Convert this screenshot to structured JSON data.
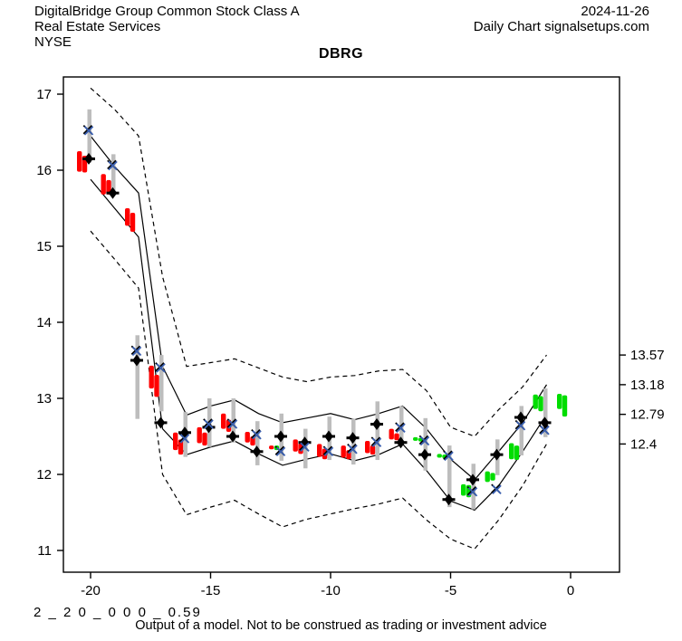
{
  "header": {
    "company": "DigitalBridge Group Common Stock Class A",
    "date": "2024-11-26",
    "sector": "Real Estate Services",
    "chart_kind": "Daily Chart signalsetups.com",
    "exchange": "NYSE"
  },
  "title": "DBRG",
  "footer": {
    "model_code": "2 _ 2 0 _ 0 0 0 _ 0.59",
    "disclaimer": "Output of a model. Not to be construed as trading or investment advice"
  },
  "chart_data": {
    "type": "candlestick-forecast",
    "title": "DBRG",
    "xlabel": "",
    "ylabel": "",
    "xlim": [
      -21.3,
      2
    ],
    "ylim": [
      10.77,
      17.23
    ],
    "x_ticks": [
      -20,
      -15,
      -10,
      -5,
      0
    ],
    "y_ticks": [
      11,
      12,
      13,
      14,
      15,
      16,
      17
    ],
    "right_axis_labels": [
      {
        "value": 13.57,
        "label": "13.57"
      },
      {
        "value": 13.18,
        "label": "13.18"
      },
      {
        "value": 12.79,
        "label": "12.79"
      },
      {
        "value": 12.4,
        "label": "12.4"
      }
    ],
    "grid": false,
    "colors": {
      "up": "#00dd00",
      "down": "#ff0000",
      "range_bar": "#bdbdbd",
      "x_marker_blue": "#3a5fb0",
      "marker_black": "#000000",
      "line": "#000000",
      "text": "#000000"
    },
    "band_days": [
      -20,
      -19,
      -18,
      -17,
      -16,
      -15,
      -14,
      -13,
      -12,
      -11,
      -10,
      -9,
      -8,
      -7,
      -6,
      -5,
      -4,
      -3,
      -2,
      -1
    ],
    "bands": {
      "upper_dashed": [
        17.08,
        16.8,
        16.45,
        14.6,
        13.42,
        13.47,
        13.52,
        13.4,
        13.28,
        13.22,
        13.28,
        13.3,
        13.36,
        13.38,
        13.1,
        12.62,
        12.5,
        12.85,
        13.15,
        13.57
      ],
      "upper_solid": [
        16.45,
        16.05,
        15.7,
        13.42,
        12.78,
        12.9,
        12.98,
        12.8,
        12.68,
        12.74,
        12.8,
        12.72,
        12.8,
        12.9,
        12.6,
        12.2,
        11.93,
        12.3,
        12.68,
        13.18
      ],
      "lower_solid": [
        15.88,
        15.5,
        15.12,
        12.6,
        12.26,
        12.36,
        12.44,
        12.27,
        12.12,
        12.2,
        12.27,
        12.18,
        12.26,
        12.4,
        12.05,
        11.65,
        11.53,
        11.85,
        12.3,
        12.79
      ],
      "lower_dashed": [
        15.2,
        14.83,
        14.45,
        12.0,
        11.47,
        11.57,
        11.66,
        11.48,
        11.31,
        11.41,
        11.48,
        11.55,
        11.61,
        11.69,
        11.4,
        11.15,
        11.02,
        11.4,
        11.85,
        12.4
      ]
    },
    "days": [
      {
        "d": -20,
        "boxes": [
          [
            16.25,
            15.98,
            "down"
          ],
          [
            16.19,
            15.97,
            "down"
          ]
        ],
        "range": [
          16.8,
          16.1
        ],
        "x": 16.52,
        "diamond": 16.15
      },
      {
        "d": -19,
        "boxes": [
          [
            15.95,
            15.68,
            "down"
          ],
          [
            15.87,
            15.68,
            "down"
          ]
        ],
        "range": [
          16.21,
          15.7
        ],
        "x": 16.06,
        "diamond": 15.7
      },
      {
        "d": -18,
        "boxes": [
          [
            15.5,
            15.27,
            "down"
          ],
          [
            15.44,
            15.19,
            "down"
          ]
        ],
        "range": [
          13.83,
          12.73
        ],
        "x": 13.62,
        "diamond": 13.5
      },
      {
        "d": -17,
        "boxes": [
          [
            13.43,
            13.13,
            "down"
          ],
          [
            13.31,
            13.02,
            "down"
          ]
        ],
        "range": [
          13.57,
          12.83
        ],
        "x": 13.4,
        "diamond": 12.68
      },
      {
        "d": -16,
        "boxes": [
          [
            12.55,
            12.32,
            "down"
          ],
          [
            12.46,
            12.26,
            "down"
          ]
        ],
        "range": [
          12.82,
          12.23
        ],
        "x": 12.47,
        "diamond": 12.55
      },
      {
        "d": -15,
        "boxes": [
          [
            12.62,
            12.41,
            "down"
          ],
          [
            12.55,
            12.38,
            "down"
          ]
        ],
        "range": [
          13.0,
          12.36
        ],
        "x": 12.66,
        "diamond": 12.62
      },
      {
        "d": -14,
        "boxes": [
          [
            12.8,
            12.6,
            "down"
          ],
          [
            12.72,
            12.56,
            "down"
          ]
        ],
        "range": [
          13.0,
          12.42
        ],
        "x": 12.66,
        "diamond": 12.5
      },
      {
        "d": -13,
        "boxes": [
          [
            12.56,
            12.42,
            "down"
          ],
          [
            12.5,
            12.38,
            "down"
          ]
        ],
        "range": [
          12.7,
          12.12
        ],
        "x": 12.52,
        "diamond": 12.3
      },
      {
        "d": -12,
        "boxes": [
          [
            12.38,
            12.33,
            "down"
          ],
          [
            12.38,
            12.32,
            "up"
          ]
        ],
        "range": [
          12.8,
          12.18
        ],
        "x": 12.3,
        "diamond": 12.5
      },
      {
        "d": -11,
        "boxes": [
          [
            12.46,
            12.3,
            "down"
          ],
          [
            12.41,
            12.27,
            "down"
          ]
        ],
        "range": [
          12.6,
          12.08
        ],
        "x": 12.36,
        "diamond": 12.42
      },
      {
        "d": -10,
        "boxes": [
          [
            12.4,
            12.23,
            "down"
          ],
          [
            12.34,
            12.2,
            "down"
          ]
        ],
        "range": [
          12.76,
          12.19
        ],
        "x": 12.3,
        "diamond": 12.5
      },
      {
        "d": -9,
        "boxes": [
          [
            12.38,
            12.22,
            "down"
          ],
          [
            12.32,
            12.2,
            "down"
          ]
        ],
        "range": [
          12.73,
          12.13
        ],
        "x": 12.33,
        "diamond": 12.48
      },
      {
        "d": -8,
        "boxes": [
          [
            12.44,
            12.28,
            "down"
          ],
          [
            12.38,
            12.26,
            "down"
          ]
        ],
        "range": [
          12.96,
          12.19
        ],
        "x": 12.42,
        "diamond": 12.66
      },
      {
        "d": -7,
        "boxes": [
          [
            12.6,
            12.46,
            "down"
          ],
          [
            12.54,
            12.45,
            "down"
          ]
        ],
        "range": [
          12.9,
          12.46
        ],
        "x": 12.61,
        "diamond": 12.42
      },
      {
        "d": -6,
        "boxes": [
          [
            12.49,
            12.45,
            "up"
          ],
          [
            12.48,
            12.44,
            "up"
          ]
        ],
        "range": [
          12.74,
          12.05
        ],
        "x": 12.44,
        "diamond": 12.26
      },
      {
        "d": -5,
        "boxes": [
          [
            12.27,
            12.22,
            "up"
          ],
          [
            12.26,
            12.21,
            "up"
          ]
        ],
        "range": [
          12.38,
          11.57
        ],
        "x": 12.24,
        "diamond": 11.67
      },
      {
        "d": -4,
        "boxes": [
          [
            11.87,
            11.72,
            "up"
          ],
          [
            11.86,
            11.7,
            "up"
          ]
        ],
        "range": [
          12.14,
          11.54
        ],
        "x": 11.77,
        "diamond": 11.93
      },
      {
        "d": -3,
        "boxes": [
          [
            12.04,
            11.9,
            "up"
          ],
          [
            12.02,
            11.92,
            "up"
          ]
        ],
        "range": [
          12.46,
          11.99
        ],
        "x": 11.8,
        "diamond": 12.26
      },
      {
        "d": -2,
        "boxes": [
          [
            12.41,
            12.2,
            "up"
          ],
          [
            12.38,
            12.19,
            "up"
          ]
        ],
        "range": [
          12.9,
          12.25
        ],
        "x": 12.64,
        "diamond": 12.75
      },
      {
        "d": -1,
        "boxes": [
          [
            13.05,
            12.86,
            "up"
          ],
          [
            13.03,
            12.83,
            "up"
          ]
        ],
        "range": [
          13.13,
          12.49
        ],
        "x": 12.58,
        "diamond": 12.68
      },
      {
        "d": 0,
        "boxes": [
          [
            13.06,
            12.86,
            "up"
          ],
          [
            13.04,
            12.76,
            "up"
          ]
        ],
        "range": null,
        "x": null,
        "diamond": null
      }
    ]
  }
}
